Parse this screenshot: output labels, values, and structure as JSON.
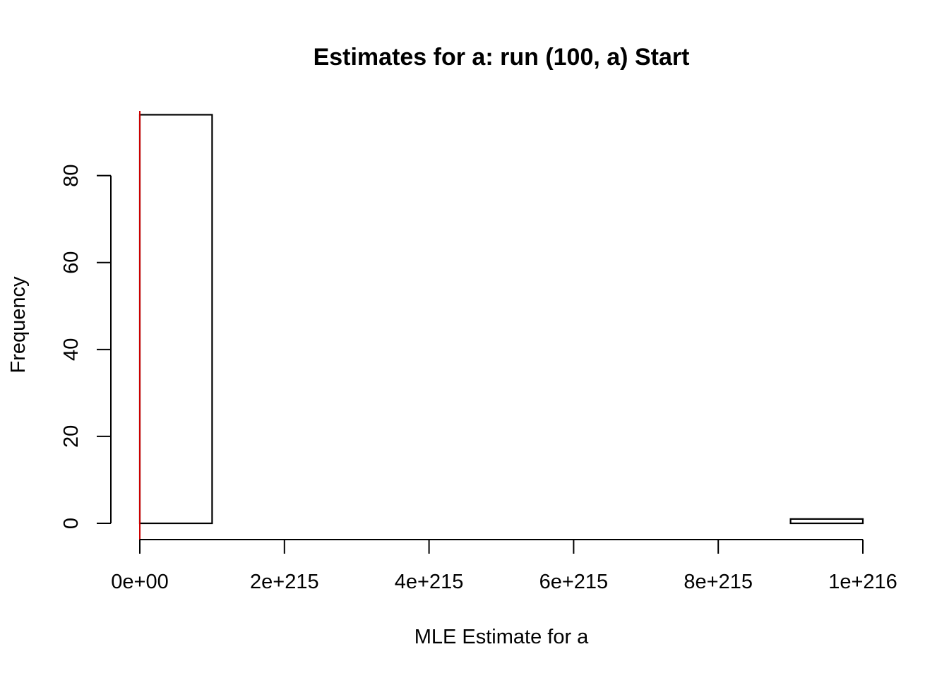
{
  "chart_data": {
    "type": "histogram",
    "title": "Estimates for a: run (100, a) Start",
    "xlabel": "MLE Estimate for a",
    "ylabel": "Frequency",
    "bins": [
      {
        "x0": 0,
        "x1": 0.5,
        "count": 94
      },
      {
        "x0": 0.5,
        "x1": 1.0,
        "count": 0
      },
      {
        "x0": 1.0,
        "x1": 1.5,
        "count": 0
      },
      {
        "x0": 1.5,
        "x1": 2.0,
        "count": 0
      },
      {
        "x0": 2.0,
        "x1": 2.5,
        "count": 0
      },
      {
        "x0": 2.5,
        "x1": 3.0,
        "count": 0
      },
      {
        "x0": 3.0,
        "x1": 3.5,
        "count": 0
      },
      {
        "x0": 3.5,
        "x1": 4.0,
        "count": 0
      },
      {
        "x0": 4.0,
        "x1": 4.5,
        "count": 0
      },
      {
        "x0": 4.5,
        "x1": 5.0,
        "count": 1
      }
    ],
    "x_unit_note": "x values expressed in units of 2e+215",
    "xlim": [
      0,
      5
    ],
    "ylim": [
      0,
      97
    ],
    "x_ticks": [
      {
        "value": 0,
        "label": "0e+00"
      },
      {
        "value": 1,
        "label": "2e+215"
      },
      {
        "value": 2,
        "label": "4e+215"
      },
      {
        "value": 3,
        "label": "6e+215"
      },
      {
        "value": 4,
        "label": "8e+215"
      },
      {
        "value": 5,
        "label": "1e+216"
      }
    ],
    "y_ticks": [
      {
        "value": 0,
        "label": "0"
      },
      {
        "value": 20,
        "label": "20"
      },
      {
        "value": 40,
        "label": "40"
      },
      {
        "value": 60,
        "label": "60"
      },
      {
        "value": 80,
        "label": "80"
      }
    ],
    "reference_line": {
      "x": 0,
      "color": "#cc0000"
    },
    "bar_fill": "#ffffff",
    "bar_stroke": "#000000",
    "grid": false,
    "legend": "none"
  }
}
